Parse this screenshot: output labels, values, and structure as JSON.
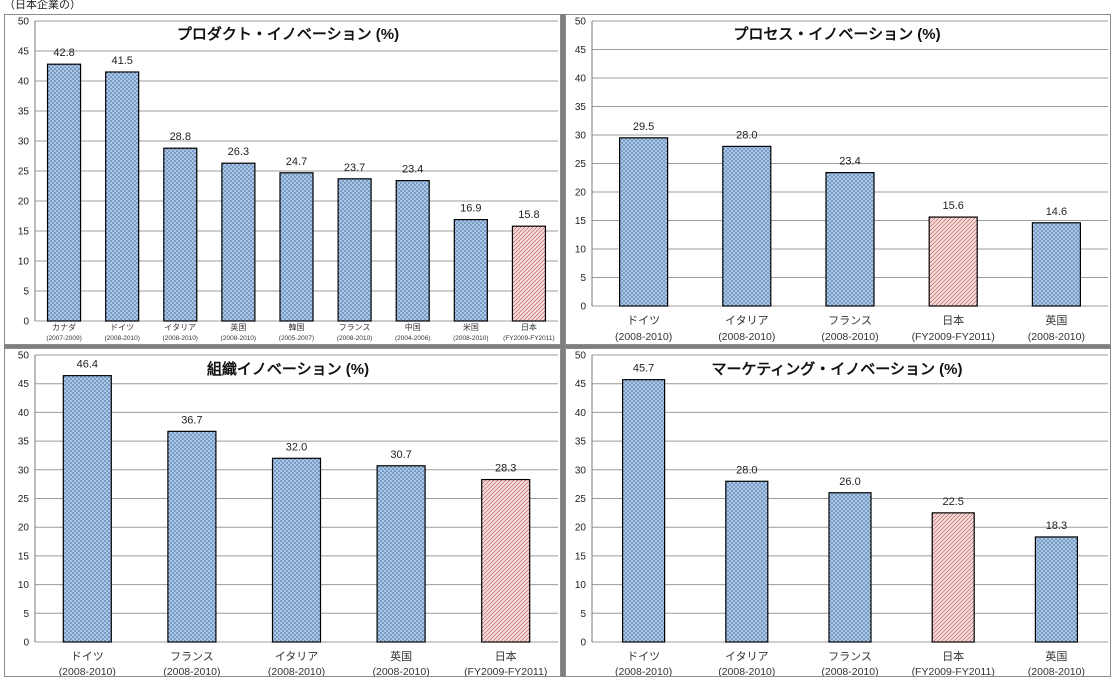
{
  "page": {
    "header_text": "（日本企業の）"
  },
  "colors": {
    "bar_fill": "#b8cce4",
    "bar_hatch": "#4f81bd",
    "japan_fill": "#f2dcdb",
    "japan_hatch": "#c0504d"
  },
  "chart_data": [
    {
      "type": "bar",
      "title": "プロダクト・イノベーション (%)",
      "ylim": [
        0,
        50
      ],
      "yticks": [
        0,
        5,
        10,
        15,
        20,
        25,
        30,
        35,
        40,
        45,
        50
      ],
      "grid": true,
      "categories": [
        {
          "name": "カナダ",
          "period": "(2007-2009)"
        },
        {
          "name": "ドイツ",
          "period": "(2008-2010)"
        },
        {
          "name": "イタリア",
          "period": "(2008-2010)"
        },
        {
          "name": "英国",
          "period": "(2008-2010)"
        },
        {
          "name": "韓国",
          "period": "(2005-2007)"
        },
        {
          "name": "フランス",
          "period": "(2008-2010)"
        },
        {
          "name": "中国",
          "period": "(2004-2006)"
        },
        {
          "name": "米国",
          "period": "(2008-2010)"
        },
        {
          "name": "日本",
          "period": "(FY2009-FY2011)"
        }
      ],
      "values": [
        42.8,
        41.5,
        28.8,
        26.3,
        24.7,
        23.7,
        23.4,
        16.9,
        15.8
      ],
      "value_labels": [
        "42.8",
        "41.5",
        "28.8",
        "26.3",
        "24.7",
        "23.7",
        "23.4",
        "16.9",
        "15.8"
      ],
      "highlight": [
        "日本"
      ]
    },
    {
      "type": "bar",
      "title": "プロセス・イノベーション (%)",
      "ylim": [
        0,
        50
      ],
      "yticks": [
        0,
        5,
        10,
        15,
        20,
        25,
        30,
        35,
        40,
        45,
        50
      ],
      "grid": true,
      "categories": [
        {
          "name": "ドイツ",
          "period": "(2008-2010)"
        },
        {
          "name": "イタリア",
          "period": "(2008-2010)"
        },
        {
          "name": "フランス",
          "period": "(2008-2010)"
        },
        {
          "name": "日本",
          "period": "(FY2009-FY2011)"
        },
        {
          "name": "英国",
          "period": "(2008-2010)"
        }
      ],
      "values": [
        29.5,
        28.0,
        23.4,
        15.6,
        14.6
      ],
      "value_labels": [
        "29.5",
        "28.0",
        "23.4",
        "15.6",
        "14.6"
      ],
      "highlight": [
        "日本"
      ]
    },
    {
      "type": "bar",
      "title": "組織イノベーション (%)",
      "ylim": [
        0,
        50
      ],
      "yticks": [
        0,
        5,
        10,
        15,
        20,
        25,
        30,
        35,
        40,
        45,
        50
      ],
      "grid": true,
      "categories": [
        {
          "name": "ドイツ",
          "period": "(2008-2010)"
        },
        {
          "name": "フランス",
          "period": "(2008-2010)"
        },
        {
          "name": "イタリア",
          "period": "(2008-2010)"
        },
        {
          "name": "英国",
          "period": "(2008-2010)"
        },
        {
          "name": "日本",
          "period": "(FY2009-FY2011)"
        }
      ],
      "values": [
        46.4,
        36.7,
        32.0,
        30.7,
        28.3
      ],
      "value_labels": [
        "46.4",
        "36.7",
        "32.0",
        "30.7",
        "28.3"
      ],
      "highlight": [
        "日本"
      ]
    },
    {
      "type": "bar",
      "title": "マーケティング・イノベーション (%)",
      "ylim": [
        0,
        50
      ],
      "yticks": [
        0,
        5,
        10,
        15,
        20,
        25,
        30,
        35,
        40,
        45,
        50
      ],
      "grid": true,
      "categories": [
        {
          "name": "ドイツ",
          "period": "(2008-2010)"
        },
        {
          "name": "イタリア",
          "period": "(2008-2010)"
        },
        {
          "name": "フランス",
          "period": "(2008-2010)"
        },
        {
          "name": "日本",
          "period": "(FY2009-FY2011)"
        },
        {
          "name": "英国",
          "period": "(2008-2010)"
        }
      ],
      "values": [
        45.7,
        28.0,
        26.0,
        22.5,
        18.3
      ],
      "value_labels": [
        "45.7",
        "28.0",
        "26.0",
        "22.5",
        "18.3"
      ],
      "highlight": [
        "日本"
      ]
    }
  ]
}
